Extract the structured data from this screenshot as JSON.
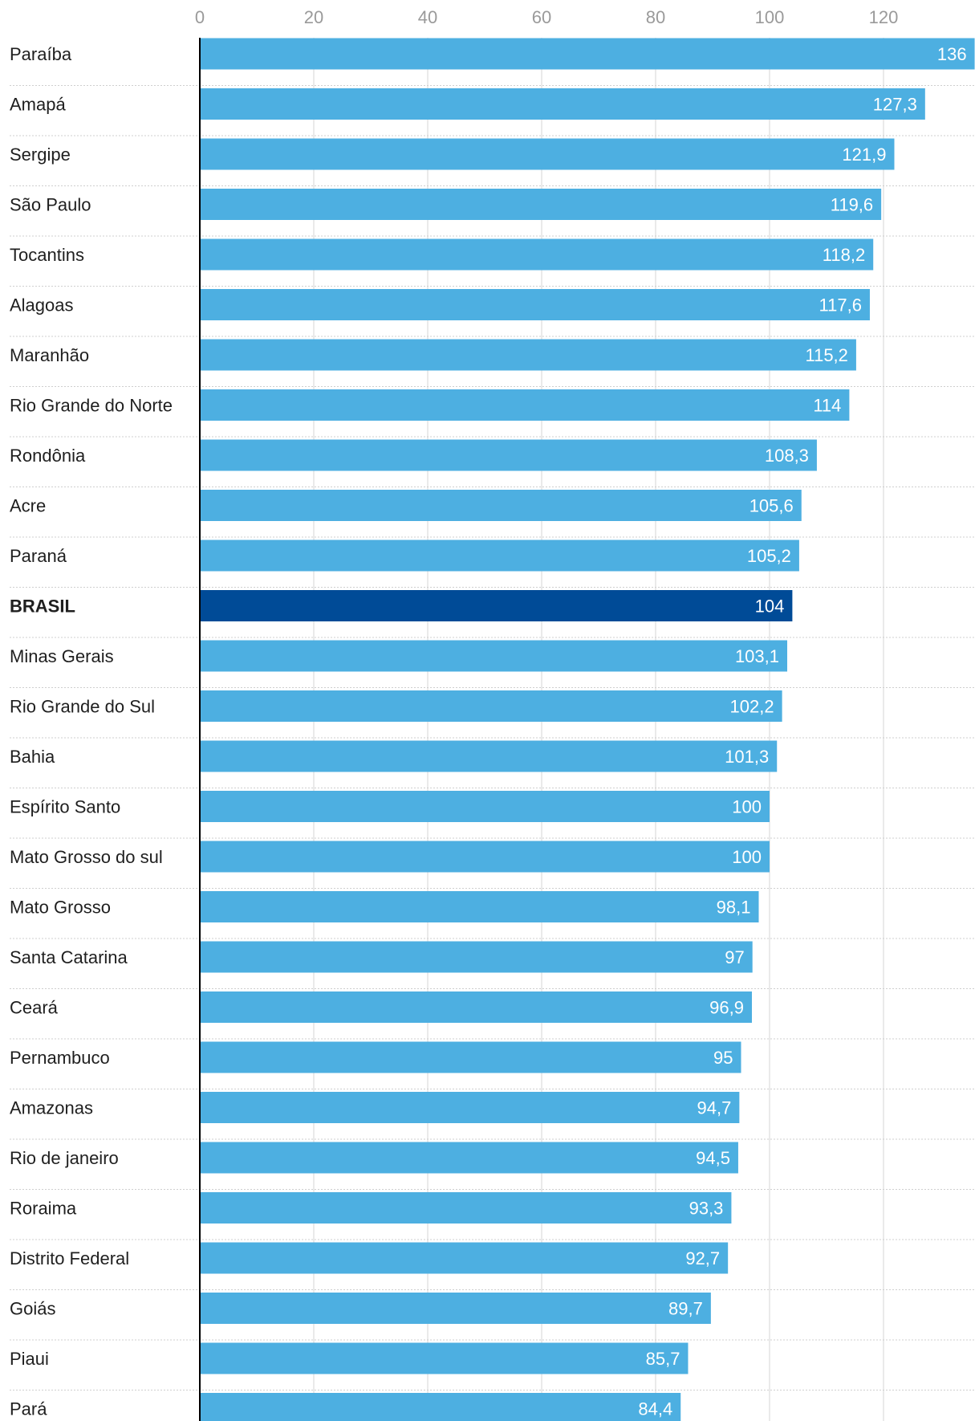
{
  "chart_data": {
    "type": "bar",
    "orientation": "horizontal",
    "title": "",
    "xlabel": "",
    "ylabel": "",
    "xlim": [
      0,
      136
    ],
    "ticks": [
      0,
      20,
      40,
      60,
      80,
      100,
      120
    ],
    "bar_color": "#4DAFE1",
    "highlight_color": "#004B97",
    "highlight_category": "BRASIL",
    "categories": [
      "Paraíba",
      "Amapá",
      "Sergipe",
      "São Paulo",
      "Tocantins",
      "Alagoas",
      "Maranhão",
      "Rio Grande do Norte",
      "Rondônia",
      "Acre",
      "Paraná",
      "BRASIL",
      "Minas Gerais",
      "Rio Grande do Sul",
      "Bahia",
      "Espírito Santo",
      "Mato Grosso do sul",
      "Mato Grosso",
      "Santa Catarina",
      "Ceará",
      "Pernambuco",
      "Amazonas",
      "Rio de janeiro",
      "Roraima",
      "Distrito Federal",
      "Goiás",
      "Piaui",
      "Pará"
    ],
    "values": [
      136,
      127.3,
      121.9,
      119.6,
      118.2,
      117.6,
      115.2,
      114,
      108.3,
      105.6,
      105.2,
      104,
      103.1,
      102.2,
      101.3,
      100,
      100,
      98.1,
      97,
      96.9,
      95,
      94.7,
      94.5,
      93.3,
      92.7,
      89.7,
      85.7,
      84.4
    ],
    "value_labels": [
      "136",
      "127,3",
      "121,9",
      "119,6",
      "118,2",
      "117,6",
      "115,2",
      "114",
      "108,3",
      "105,6",
      "105,2",
      "104",
      "103,1",
      "102,2",
      "101,3",
      "100",
      "100",
      "98,1",
      "97",
      "96,9",
      "95",
      "94,7",
      "94,5",
      "93,3",
      "92,7",
      "89,7",
      "85,7",
      "84,4"
    ]
  }
}
